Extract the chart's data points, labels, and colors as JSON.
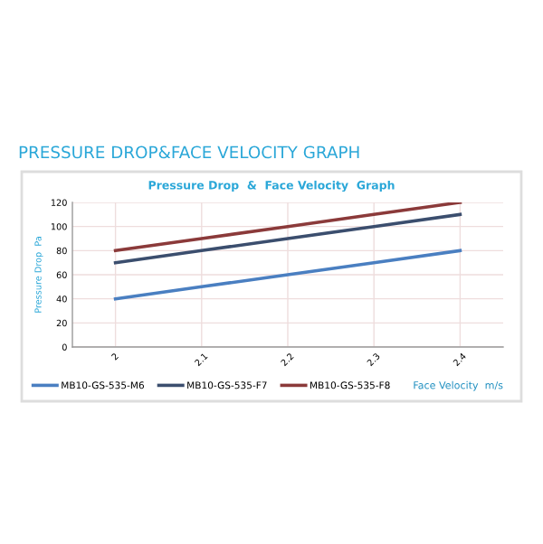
{
  "chart_data": {
    "type": "line",
    "title": "PRESSURE DROP&FACE VELOCITY GRAPH",
    "subtitle": "Pressure Drop  &  Face Velocity  Graph",
    "ylabel": "Pressure Drop  Pa",
    "xlabel": "Face Velocity  m/s",
    "categories": [
      "2",
      "2.1",
      "2.2",
      "2.3",
      "2.4"
    ],
    "series": [
      {
        "name": "MB10-GS-535-M6",
        "color": "#4a7fc1",
        "values": [
          40,
          50,
          60,
          70,
          80
        ]
      },
      {
        "name": "MB10-GS-535-F7",
        "color": "#3b4e6e",
        "values": [
          70,
          80,
          90,
          100,
          110
        ]
      },
      {
        "name": "MB10-GS-535-F8",
        "color": "#8b3a3a",
        "values": [
          80,
          90,
          100,
          110,
          120
        ]
      }
    ],
    "ylim": [
      0,
      120
    ],
    "yticks": [
      0,
      20,
      40,
      60,
      80,
      100,
      120
    ],
    "grid": true,
    "legend": "bottom",
    "marker": "none",
    "line_style": "solid"
  }
}
